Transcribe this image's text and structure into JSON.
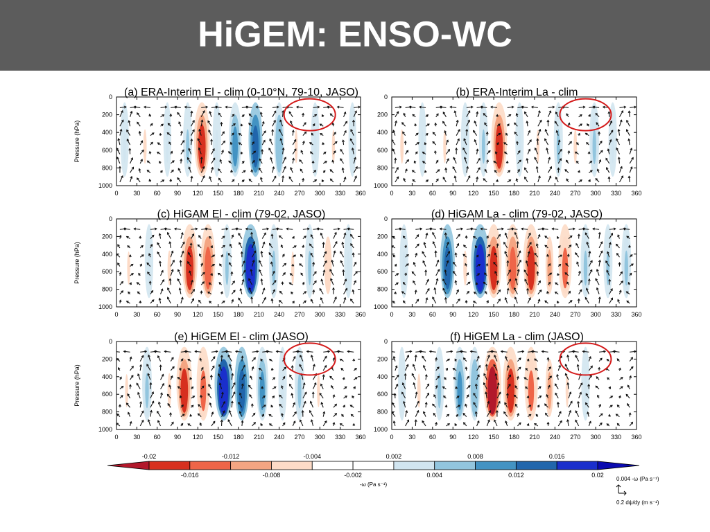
{
  "slide": {
    "title": "HiGEM: ENSO-WC"
  },
  "chart_data": [
    {
      "type": "heatmap",
      "title": "(a) ERA-Interim El - clim (0-10°N, 79-10, JASO)",
      "ylabel": "Pressure (hPa)",
      "x_ticks": [
        "0",
        "30",
        "60",
        "90",
        "120",
        "150",
        "180",
        "210",
        "240",
        "270",
        "300",
        "330",
        "360"
      ],
      "y_ticks": [
        "0",
        "200",
        "400",
        "600",
        "800",
        "1000"
      ],
      "xlim": [
        0,
        360
      ],
      "ylim": [
        1000,
        0
      ],
      "highlight_circle": true,
      "anomalies": [
        {
          "lon": 12,
          "omega": 0.004
        },
        {
          "lon": 42,
          "omega": -0.005
        },
        {
          "lon": 75,
          "omega": 0.003
        },
        {
          "lon": 105,
          "omega": 0.005
        },
        {
          "lon": 126,
          "omega": -0.016
        },
        {
          "lon": 148,
          "omega": 0.004
        },
        {
          "lon": 175,
          "omega": 0.011
        },
        {
          "lon": 205,
          "omega": 0.013
        },
        {
          "lon": 240,
          "omega": 0.007
        },
        {
          "lon": 265,
          "omega": -0.004
        },
        {
          "lon": 293,
          "omega": 0.004
        },
        {
          "lon": 320,
          "omega": -0.004
        },
        {
          "lon": 348,
          "omega": 0.003
        }
      ]
    },
    {
      "type": "heatmap",
      "title": "(b) ERA-Interim La - clim",
      "ylabel": "",
      "x_ticks": [
        "0",
        "30",
        "60",
        "90",
        "120",
        "150",
        "180",
        "210",
        "240",
        "270",
        "300",
        "330",
        "360"
      ],
      "y_ticks": [
        "0",
        "200",
        "400",
        "600",
        "800",
        "1000"
      ],
      "xlim": [
        0,
        360
      ],
      "ylim": [
        1000,
        0
      ],
      "highlight_circle": true,
      "anomalies": [
        {
          "lon": 15,
          "omega": -0.005
        },
        {
          "lon": 45,
          "omega": 0.003
        },
        {
          "lon": 78,
          "omega": -0.004
        },
        {
          "lon": 108,
          "omega": 0.004
        },
        {
          "lon": 135,
          "omega": 0.005
        },
        {
          "lon": 158,
          "omega": -0.016
        },
        {
          "lon": 188,
          "omega": 0.004
        },
        {
          "lon": 215,
          "omega": -0.004
        },
        {
          "lon": 245,
          "omega": 0.005
        },
        {
          "lon": 270,
          "omega": -0.005
        },
        {
          "lon": 298,
          "omega": 0.006
        },
        {
          "lon": 325,
          "omega": 0.004
        },
        {
          "lon": 350,
          "omega": -0.003
        }
      ]
    },
    {
      "type": "heatmap",
      "title": "(c) HiGAM El - clim (79-02, JASO)",
      "ylabel": "Pressure (hPa)",
      "x_ticks": [
        "0",
        "30",
        "60",
        "90",
        "120",
        "150",
        "180",
        "210",
        "240",
        "270",
        "300",
        "330",
        "360"
      ],
      "y_ticks": [
        "0",
        "200",
        "400",
        "600",
        "800",
        "1000"
      ],
      "xlim": [
        0,
        360
      ],
      "ylim": [
        1000,
        0
      ],
      "highlight_circle": false,
      "anomalies": [
        {
          "lon": 18,
          "omega": -0.004
        },
        {
          "lon": 48,
          "omega": 0.004
        },
        {
          "lon": 78,
          "omega": -0.006
        },
        {
          "lon": 108,
          "omega": -0.016
        },
        {
          "lon": 135,
          "omega": -0.014
        },
        {
          "lon": 163,
          "omega": 0.005
        },
        {
          "lon": 198,
          "omega": 0.02
        },
        {
          "lon": 232,
          "omega": 0.006
        },
        {
          "lon": 260,
          "omega": -0.004
        },
        {
          "lon": 285,
          "omega": 0.005
        },
        {
          "lon": 312,
          "omega": -0.007
        },
        {
          "lon": 342,
          "omega": 0.004
        }
      ]
    },
    {
      "type": "heatmap",
      "title": "(d) HiGAM La - clim (79-02, JASO)",
      "ylabel": "",
      "x_ticks": [
        "0",
        "30",
        "60",
        "90",
        "120",
        "150",
        "180",
        "210",
        "240",
        "270",
        "300",
        "330",
        "360"
      ],
      "y_ticks": [
        "0",
        "200",
        "400",
        "600",
        "800",
        "1000"
      ],
      "xlim": [
        0,
        360
      ],
      "ylim": [
        1000,
        0
      ],
      "highlight_circle": false,
      "anomalies": [
        {
          "lon": 18,
          "omega": 0.004
        },
        {
          "lon": 55,
          "omega": -0.003
        },
        {
          "lon": 82,
          "omega": 0.014
        },
        {
          "lon": 108,
          "omega": -0.006
        },
        {
          "lon": 130,
          "omega": 0.02
        },
        {
          "lon": 150,
          "omega": -0.016
        },
        {
          "lon": 178,
          "omega": -0.014
        },
        {
          "lon": 205,
          "omega": -0.016
        },
        {
          "lon": 232,
          "omega": -0.008
        },
        {
          "lon": 255,
          "omega": -0.012
        },
        {
          "lon": 285,
          "omega": 0.006
        },
        {
          "lon": 318,
          "omega": 0.005
        },
        {
          "lon": 345,
          "omega": 0.006
        }
      ]
    },
    {
      "type": "heatmap",
      "title": "(e) HiGEM El - clim (JASO)",
      "ylabel": "Pressure (hPa)",
      "x_ticks": [
        "0",
        "30",
        "60",
        "90",
        "120",
        "150",
        "180",
        "210",
        "240",
        "270",
        "300",
        "330",
        "360"
      ],
      "y_ticks": [
        "0",
        "200",
        "400",
        "600",
        "800",
        "1000"
      ],
      "xlim": [
        0,
        360
      ],
      "ylim": [
        1000,
        0
      ],
      "highlight_circle": true,
      "anomalies": [
        {
          "lon": 15,
          "omega": -0.004
        },
        {
          "lon": 45,
          "omega": 0.006
        },
        {
          "lon": 78,
          "omega": -0.006
        },
        {
          "lon": 100,
          "omega": -0.016
        },
        {
          "lon": 128,
          "omega": -0.012
        },
        {
          "lon": 158,
          "omega": 0.02
        },
        {
          "lon": 185,
          "omega": 0.014
        },
        {
          "lon": 215,
          "omega": 0.01
        },
        {
          "lon": 245,
          "omega": 0.004
        },
        {
          "lon": 270,
          "omega": 0.006
        },
        {
          "lon": 298,
          "omega": -0.004
        },
        {
          "lon": 330,
          "omega": -0.003
        }
      ]
    },
    {
      "type": "heatmap",
      "title": "(f) HiGEM La - clim (JASO)",
      "ylabel": "",
      "x_ticks": [
        "0",
        "30",
        "60",
        "90",
        "120",
        "150",
        "180",
        "210",
        "240",
        "270",
        "300",
        "330",
        "360"
      ],
      "y_ticks": [
        "0",
        "200",
        "400",
        "600",
        "800",
        "1000"
      ],
      "xlim": [
        0,
        360
      ],
      "ylim": [
        1000,
        0
      ],
      "highlight_circle": true,
      "anomalies": [
        {
          "lon": 15,
          "omega": 0.003
        },
        {
          "lon": 40,
          "omega": -0.005
        },
        {
          "lon": 70,
          "omega": 0.006
        },
        {
          "lon": 100,
          "omega": 0.01
        },
        {
          "lon": 122,
          "omega": 0.008
        },
        {
          "lon": 148,
          "omega": -0.02
        },
        {
          "lon": 175,
          "omega": -0.016
        },
        {
          "lon": 205,
          "omega": -0.012
        },
        {
          "lon": 232,
          "omega": -0.008
        },
        {
          "lon": 258,
          "omega": -0.004
        },
        {
          "lon": 285,
          "omega": 0.004
        },
        {
          "lon": 318,
          "omega": -0.003
        }
      ]
    }
  ],
  "colorbar": {
    "upper_labels": [
      "-0.02",
      "-0.012",
      "-0.004",
      "0.002",
      "0.008",
      "0.016"
    ],
    "lower_labels": [
      "-0.016",
      "-0.008",
      "-0.002",
      "0.004",
      "0.012",
      "0.02"
    ],
    "levels": [
      -0.02,
      -0.016,
      -0.012,
      -0.008,
      -0.004,
      -0.002,
      0.002,
      0.004,
      0.008,
      0.012,
      0.016,
      0.02
    ],
    "colors": [
      "#b2182b",
      "#d7301f",
      "#ef6548",
      "#f4a582",
      "#fddbc7",
      "#ffffff",
      "#ffffff",
      "#d1e5f0",
      "#92c5de",
      "#4393c3",
      "#2166ac",
      "#1a2fcc",
      "#0b0bb0"
    ],
    "units_label": "-ω (Pa s⁻¹)"
  },
  "vector_legend": {
    "label_top": "0.004 -ω (Pa s⁻¹)",
    "label_bottom": "0.2 dψ/dy (m s⁻¹)"
  }
}
